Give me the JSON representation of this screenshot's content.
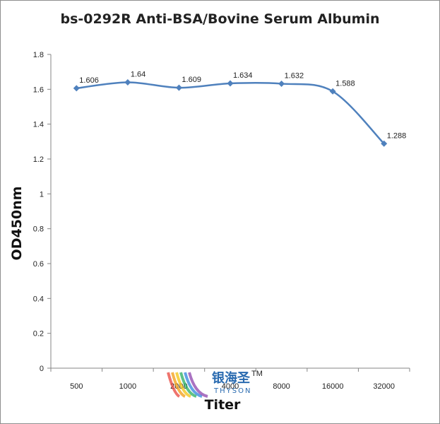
{
  "chart_data": {
    "type": "line",
    "title": "bs-0292R Anti-BSA/Bovine Serum Albumin",
    "xlabel": "Titer",
    "ylabel": "OD450nm",
    "categories": [
      "500",
      "1000",
      "2000",
      "4000",
      "8000",
      "16000",
      "32000"
    ],
    "series": [
      {
        "values": [
          1.606,
          1.64,
          1.609,
          1.634,
          1.632,
          1.588,
          1.288
        ]
      }
    ],
    "data_labels": [
      "1.606",
      "1.64",
      "1.609",
      "1.634",
      "1.632",
      "1.588",
      "1.288"
    ],
    "ylim": [
      0,
      1.8
    ],
    "yticks": [
      "0",
      "0.2",
      "0.4",
      "0.6",
      "0.8",
      "1",
      "1.2",
      "1.4",
      "1.6",
      "1.8"
    ],
    "grid": false,
    "legend": "none",
    "line_color": "#4f81bd"
  },
  "watermark": {
    "cn": "银海圣",
    "tm": "TM",
    "en": "THYSON"
  }
}
